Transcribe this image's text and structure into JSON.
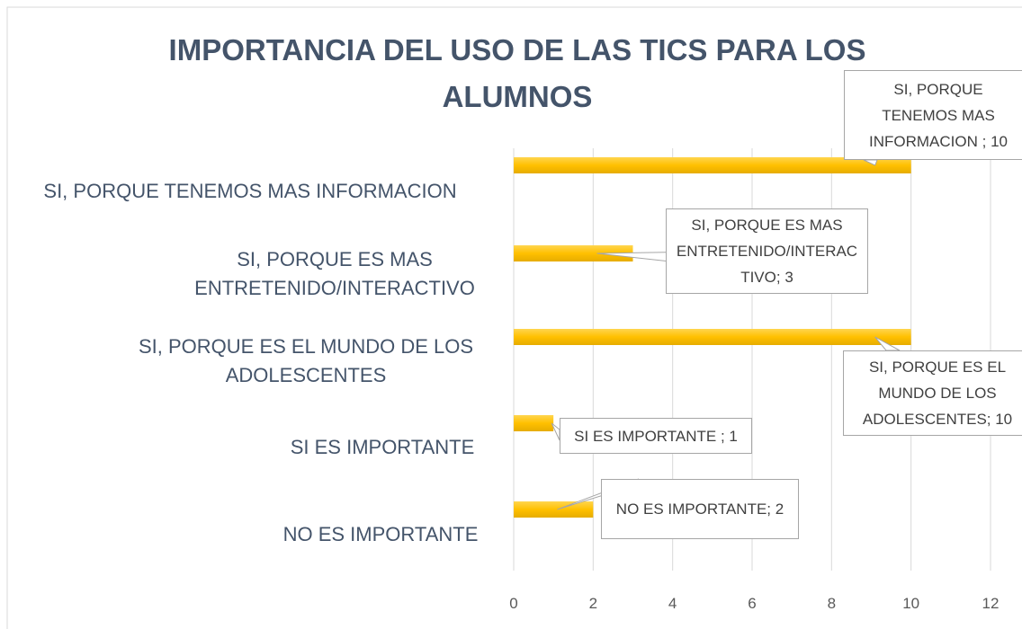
{
  "chart_data": {
    "type": "barh",
    "title": "IMPORTANCIA DEL USO DE LAS TICS PARA LOS ALUMNOS",
    "categories": [
      "SI, PORQUE TENEMOS MAS INFORMACION",
      "SI, PORQUE ES MAS ENTRETENIDO/INTERACTIVO",
      "SI, PORQUE ES EL MUNDO DE LOS ADOLESCENTES",
      "SI ES IMPORTANTE",
      "NO ES IMPORTANTE"
    ],
    "values": [
      10,
      3,
      10,
      1,
      2
    ],
    "value_labels": [
      "SI, PORQUE TENEMOS MAS INFORMACION ; 10",
      "SI, PORQUE ES MAS ENTRETENIDO/INTERACTIVO; 3",
      "SI, PORQUE ES EL MUNDO DE LOS ADOLESCENTES; 10",
      "SI ES IMPORTANTE ; 1",
      "NO ES IMPORTANTE; 2"
    ],
    "color": "#ffc000",
    "xlim": [
      0,
      12
    ],
    "xticks": [
      0,
      2,
      4,
      6,
      8,
      10,
      12
    ],
    "grid": true
  }
}
